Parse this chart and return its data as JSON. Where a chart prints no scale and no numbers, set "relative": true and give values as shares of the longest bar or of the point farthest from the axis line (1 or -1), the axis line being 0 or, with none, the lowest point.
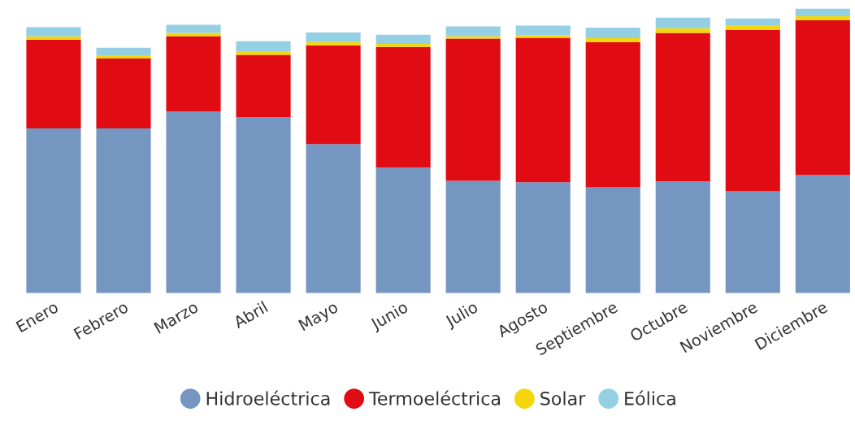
{
  "chart_data": {
    "type": "bar",
    "stacked": true,
    "relative": true,
    "legend": "bottom",
    "grid": false,
    "categories": [
      "Enero",
      "Febrero",
      "Marzo",
      "Abril",
      "Mayo",
      "Junio",
      "Julio",
      "Agosto",
      "Septiembre",
      "Octubre",
      "Noviembre",
      "Diciembre"
    ],
    "series": [
      {
        "name": "Hidroeléctrica",
        "color": "#7496c0",
        "values": [
          0.579,
          0.579,
          0.639,
          0.619,
          0.524,
          0.441,
          0.395,
          0.39,
          0.372,
          0.393,
          0.358,
          0.415
        ]
      },
      {
        "name": "Termoeléctrica",
        "color": "#e00b13",
        "values": [
          0.312,
          0.246,
          0.264,
          0.218,
          0.347,
          0.424,
          0.499,
          0.507,
          0.51,
          0.521,
          0.567,
          0.544
        ]
      },
      {
        "name": "Solar",
        "color": "#f5d60a",
        "values": [
          0.011,
          0.011,
          0.011,
          0.011,
          0.011,
          0.011,
          0.009,
          0.009,
          0.014,
          0.017,
          0.014,
          0.014
        ]
      },
      {
        "name": "Eólica",
        "color": "#95cfe4",
        "values": [
          0.032,
          0.026,
          0.029,
          0.037,
          0.034,
          0.032,
          0.034,
          0.034,
          0.037,
          0.037,
          0.026,
          0.027
        ]
      }
    ]
  }
}
